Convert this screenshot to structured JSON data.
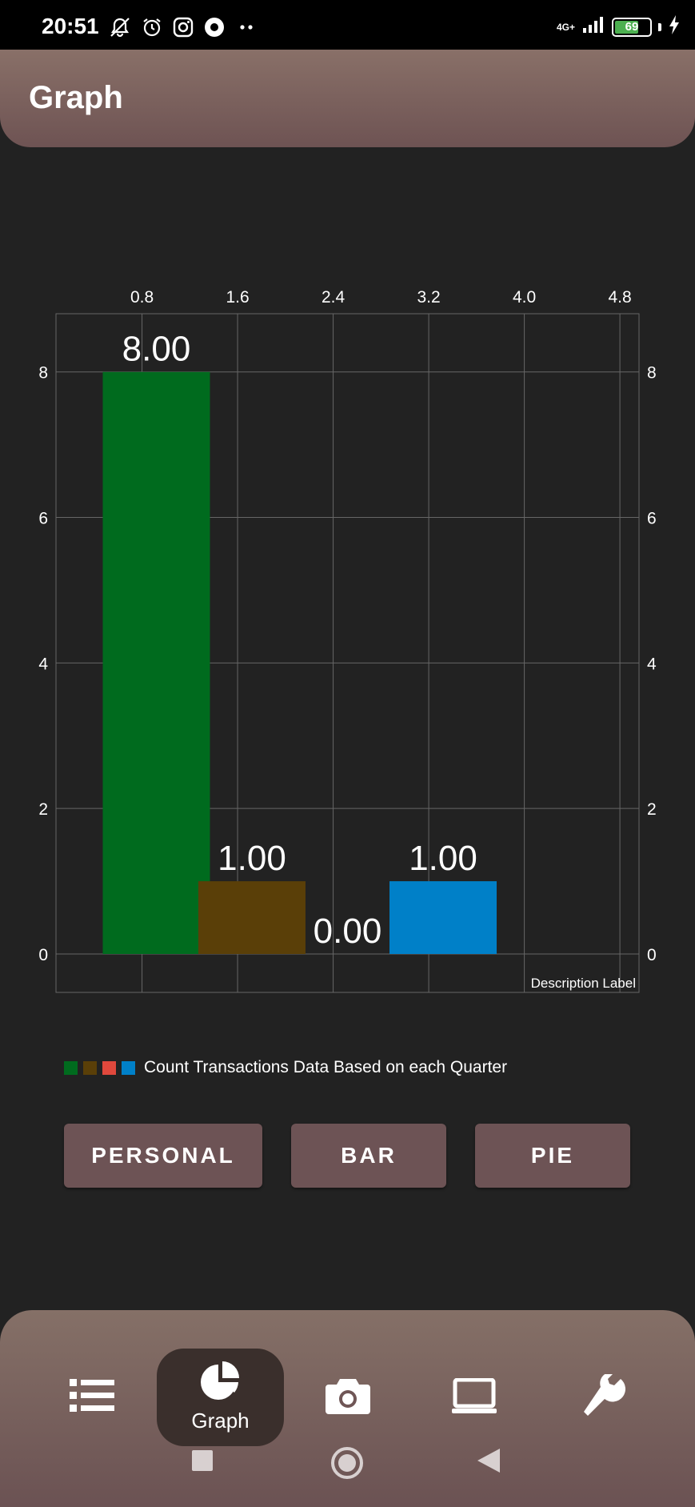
{
  "status_bar": {
    "time": "20:51",
    "network": "4G+",
    "battery": "69",
    "battery_level": 0.69,
    "icons": [
      "bell-off-icon",
      "alarm-icon",
      "instagram-icon",
      "app-icon",
      "more-dots-icon",
      "signal-icon",
      "battery-icon",
      "charging-icon"
    ]
  },
  "app_bar": {
    "title": "Graph"
  },
  "chart_data": {
    "type": "bar",
    "x_ticks": [
      "0.8",
      "1.6",
      "2.4",
      "3.2",
      "4.0",
      "4.8"
    ],
    "y_ticks": [
      "0",
      "2",
      "4",
      "6",
      "8"
    ],
    "x_axis_position": "top",
    "ylim": [
      0,
      8.8
    ],
    "xlim": [
      0.08,
      4.96
    ],
    "bars": [
      {
        "x": 1.0,
        "value": 8.0,
        "label": "8.00",
        "color": "#006b1e"
      },
      {
        "x": 2.0,
        "value": 1.0,
        "label": "1.00",
        "color": "#5a3f08"
      },
      {
        "x": 3.0,
        "value": 0.0,
        "label": "0.00",
        "color": "#e0483c"
      },
      {
        "x": 4.0,
        "value": 1.0,
        "label": "1.00",
        "color": "#0080c8"
      }
    ],
    "bar_width": 0.9,
    "description": "Description Label",
    "grid": true,
    "legend": {
      "colors": [
        "#006b1e",
        "#5a3f08",
        "#e0483c",
        "#0080c8"
      ],
      "label": "Count Transactions Data Based on each Quarter"
    }
  },
  "buttons": {
    "personal": "PERSONAL",
    "bar": "BAR",
    "pie": "PIE"
  },
  "bottom_nav": {
    "items": [
      {
        "icon": "list-icon",
        "label": ""
      },
      {
        "icon": "pie-chart-icon",
        "label": "Graph"
      },
      {
        "icon": "camera-icon",
        "label": ""
      },
      {
        "icon": "laptop-icon",
        "label": ""
      },
      {
        "icon": "wrench-icon",
        "label": ""
      }
    ],
    "active_index": 1
  },
  "system_nav": [
    "recents-icon",
    "home-icon",
    "back-icon"
  ]
}
